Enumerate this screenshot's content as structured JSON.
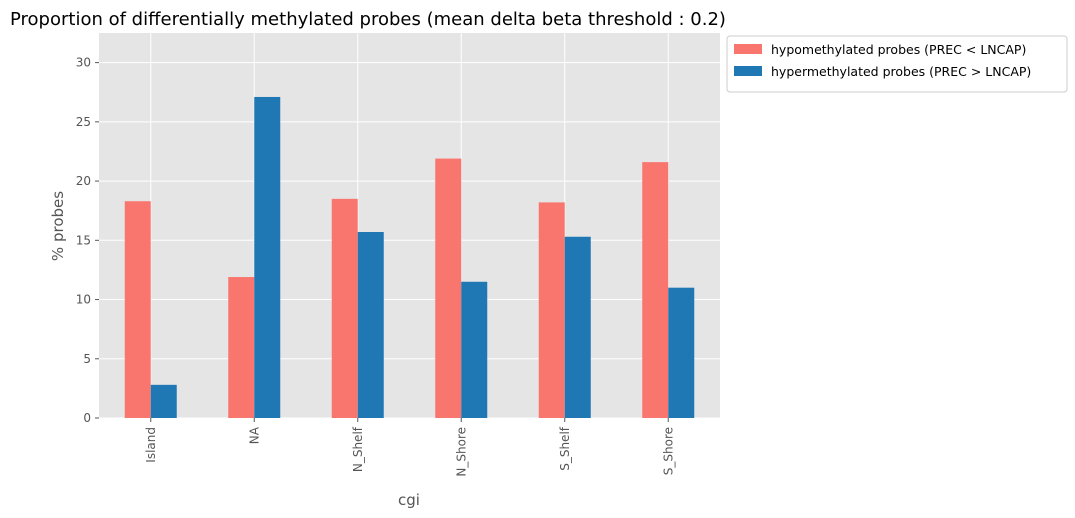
{
  "chart_data": {
    "type": "bar",
    "title": "Proportion of differentially methylated probes (mean delta beta threshold : 0.2)",
    "xlabel": "cgi",
    "ylabel": "% probes",
    "categories": [
      "Island",
      "NA",
      "N_Shelf",
      "N_Shore",
      "S_Shelf",
      "S_Shore"
    ],
    "series": [
      {
        "name": "hypomethylated probes (PREC < LNCAP)",
        "color": "#f8766d",
        "values": [
          18.3,
          11.9,
          18.5,
          21.9,
          18.2,
          21.6
        ]
      },
      {
        "name": "hypermethylated probes (PREC > LNCAP)",
        "color": "#1f77b4",
        "values": [
          2.8,
          27.1,
          15.7,
          11.5,
          15.3,
          11.0
        ]
      }
    ],
    "ylim": [
      0,
      32.5
    ],
    "yticks": [
      0,
      5,
      10,
      15,
      20,
      25,
      30
    ],
    "grid": true,
    "background": "#e5e5e5",
    "legend_position": "outside upper right"
  }
}
